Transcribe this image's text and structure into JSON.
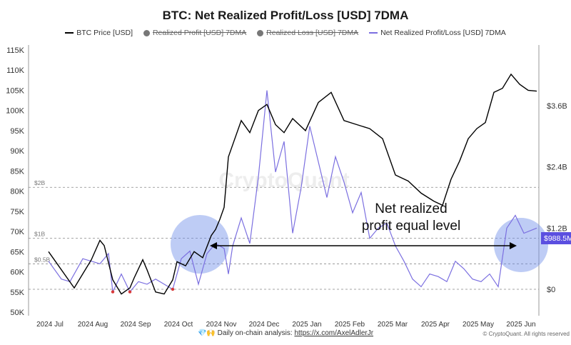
{
  "title": "BTC: Net Realized Profit/Loss [USD] 7DMA",
  "legend": [
    {
      "label": "BTC Price [USD]",
      "color": "#000000",
      "style": "line",
      "enabled": true
    },
    {
      "label": "Realized Profit [USD] 7DMA",
      "color": "#777777",
      "style": "dot",
      "enabled": false
    },
    {
      "label": "Realized Loss [USD] 7DMA",
      "color": "#777777",
      "style": "dot",
      "enabled": false
    },
    {
      "label": "Net Realized Profit/Loss [USD] 7DMA",
      "color": "#7b6fe0",
      "style": "line",
      "enabled": true
    }
  ],
  "watermark": "CryptoQuant",
  "annotation": "Net realized\nprofit equal level",
  "price_tag": "$988.5M",
  "footer": {
    "prefix": "💎🙌 Daily on-chain analysis: ",
    "link": "https://x.com/AxelAdlerJr"
  },
  "copyright": "© CryptoQuant. All rights reserved",
  "chart_data": {
    "type": "line",
    "left_axis": {
      "ticks": [
        "115K",
        "110K",
        "105K",
        "100K",
        "95K",
        "90K",
        "85K",
        "80K",
        "75K",
        "70K",
        "65K",
        "60K",
        "55K",
        "50K"
      ],
      "range": [
        50000,
        115000
      ]
    },
    "right_axis": {
      "ticks": [
        "$3.6B",
        "$2.4B",
        "$1.2B",
        "$0"
      ]
    },
    "ref_lines": [
      "$2B",
      "$1B",
      "$0.5B"
    ],
    "x_ticks": [
      "2024 Jul",
      "2024 Aug",
      "2024 Sep",
      "2024 Oct",
      "2024 Nov",
      "2024 Dec",
      "2025 Jan",
      "2025 Feb",
      "2025 Mar",
      "2025 Apr",
      "2025 May",
      "2025 Jun"
    ],
    "series": [
      {
        "name": "BTC Price [USD]",
        "color": "#000000",
        "x": [
          0,
          0.3,
          0.6,
          1.0,
          1.2,
          1.3,
          1.5,
          1.7,
          1.9,
          2.0,
          2.2,
          2.3,
          2.5,
          2.7,
          2.9,
          3.0,
          3.2,
          3.4,
          3.6,
          3.8,
          3.9,
          4.0,
          4.1,
          4.2,
          4.3,
          4.5,
          4.7,
          4.9,
          5.1,
          5.3,
          5.5,
          5.7,
          6.0,
          6.3,
          6.6,
          6.9,
          7.2,
          7.5,
          7.8,
          8.1,
          8.4,
          8.7,
          9.0,
          9.2,
          9.4,
          9.6,
          9.8,
          10.0,
          10.2,
          10.4,
          10.6,
          10.8,
          11.0,
          11.2,
          11.4
        ],
        "values": [
          65000,
          60500,
          56000,
          63000,
          67800,
          66500,
          58000,
          54500,
          56000,
          58500,
          63000,
          60500,
          55000,
          54500,
          58000,
          62500,
          61500,
          65000,
          63500,
          69000,
          70500,
          73000,
          76000,
          88500,
          91500,
          97500,
          94500,
          100000,
          101500,
          96500,
          94500,
          98000,
          95000,
          102000,
          104500,
          97500,
          96500,
          95500,
          93000,
          84000,
          82500,
          79500,
          77500,
          76500,
          83000,
          87500,
          93000,
          95500,
          97000,
          104500,
          105500,
          109000,
          106500,
          105000,
          104800
        ]
      },
      {
        "name": "Net Realized Profit/Loss [USD] 7DMA",
        "color": "#7b6fe0",
        "x": [
          0,
          0.3,
          0.5,
          0.8,
          1.0,
          1.2,
          1.4,
          1.5,
          1.7,
          1.9,
          2.1,
          2.3,
          2.5,
          2.7,
          2.9,
          3.1,
          3.3,
          3.5,
          3.7,
          3.9,
          4.1,
          4.2,
          4.3,
          4.5,
          4.7,
          4.9,
          5.1,
          5.3,
          5.5,
          5.7,
          5.9,
          6.1,
          6.3,
          6.5,
          6.7,
          6.9,
          7.1,
          7.3,
          7.5,
          7.7,
          7.9,
          8.1,
          8.3,
          8.5,
          8.7,
          8.9,
          9.1,
          9.3,
          9.5,
          9.7,
          9.9,
          10.1,
          10.3,
          10.5,
          10.7,
          10.9,
          11.1,
          11.4
        ],
        "values": [
          0.55,
          0.2,
          0.15,
          0.6,
          0.55,
          0.5,
          0.7,
          -0.05,
          0.3,
          -0.05,
          0.15,
          0.1,
          0.2,
          0.1,
          0.0,
          0.6,
          0.75,
          0.1,
          0.7,
          0.9,
          0.8,
          0.3,
          0.85,
          1.4,
          0.9,
          2.2,
          3.9,
          2.3,
          2.9,
          1.1,
          2.0,
          3.2,
          2.5,
          1.8,
          2.6,
          2.1,
          1.5,
          1.9,
          1.0,
          1.2,
          1.3,
          0.85,
          0.55,
          0.2,
          0.05,
          0.3,
          0.25,
          0.15,
          0.55,
          0.4,
          0.2,
          0.15,
          0.3,
          0.05,
          1.2,
          1.45,
          1.1,
          1.2
        ]
      }
    ],
    "right_value_units": "billion USD"
  }
}
